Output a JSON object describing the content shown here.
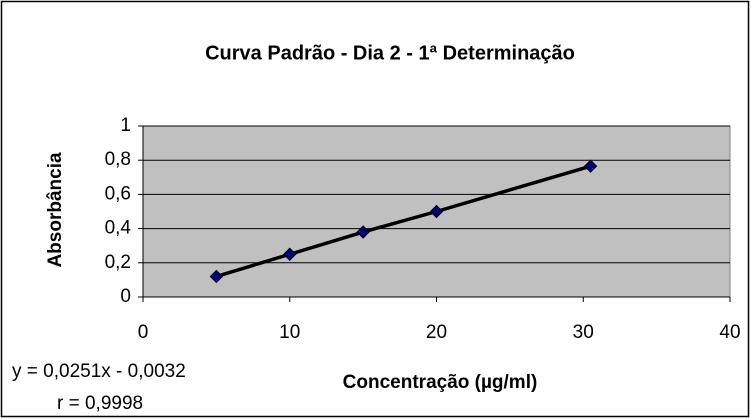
{
  "chart_data": {
    "type": "scatter",
    "title": "Curva Padrão - Dia 2 - 1ª Determinação",
    "x_label": "Concentração (µg/ml)",
    "y_label": "Absorbância",
    "annotations": [
      "y = 0,0251x - 0,0032",
      "r = 0,9998"
    ],
    "x": [
      5,
      10,
      15,
      20,
      30.5
    ],
    "series": [
      {
        "name": "Absorbância",
        "color": "#000080",
        "line_color": "#000000",
        "values": [
          0.12,
          0.25,
          0.38,
          0.5,
          0.765
        ]
      }
    ],
    "xlim": [
      0,
      40
    ],
    "xticks": [
      0,
      10,
      20,
      30,
      40
    ],
    "ylim": [
      0,
      1
    ],
    "yticks": [
      0,
      {
        "value": 0.2,
        "label": "0,2"
      },
      {
        "value": 0.4,
        "label": "0,4"
      },
      {
        "value": 0.6,
        "label": "0,6"
      },
      {
        "value": 0.8,
        "label": "0,8"
      },
      1
    ],
    "grid": true
  }
}
